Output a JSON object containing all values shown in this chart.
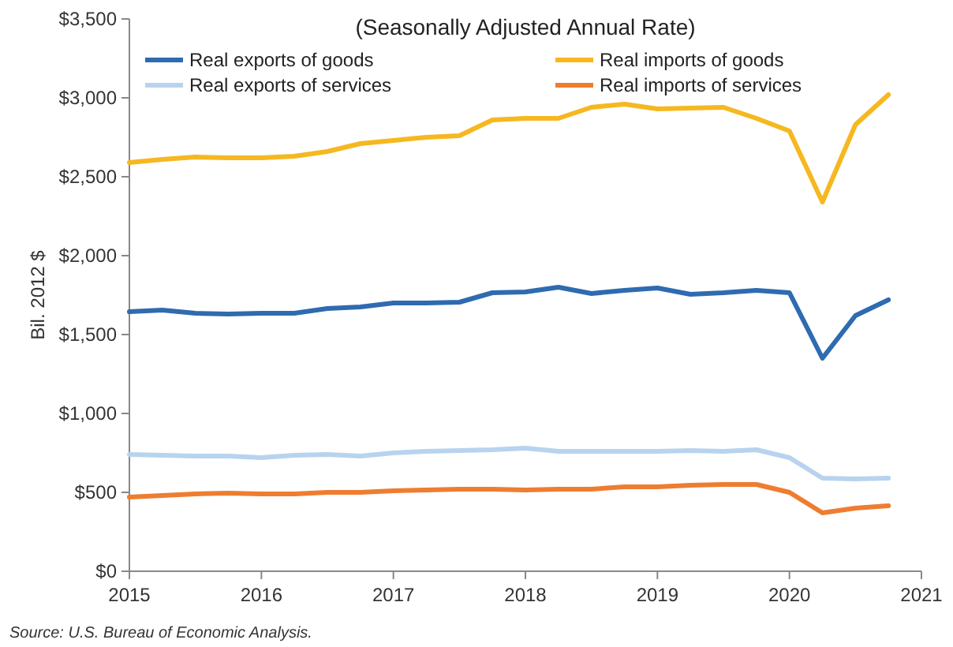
{
  "chart_data": {
    "type": "line",
    "title": "(Seasonally Adjusted Annual Rate)",
    "ylabel": "Bil. 2012 $",
    "annotations": [
      "Source: U.S. Bureau of Economic Analysis."
    ],
    "x": [
      2015,
      2015.25,
      2015.5,
      2015.75,
      2016,
      2016.25,
      2016.5,
      2016.75,
      2017,
      2017.25,
      2017.5,
      2017.75,
      2018,
      2018.25,
      2018.5,
      2018.75,
      2019,
      2019.25,
      2019.5,
      2019.75,
      2020,
      2020.25,
      2020.5,
      2020.75
    ],
    "series": [
      {
        "name": "Real exports of goods",
        "color": "#2e6bb0",
        "values": [
          1645,
          1655,
          1635,
          1630,
          1635,
          1635,
          1665,
          1675,
          1700,
          1700,
          1705,
          1765,
          1770,
          1800,
          1760,
          1780,
          1795,
          1755,
          1765,
          1780,
          1765,
          1350,
          1620,
          1720
        ]
      },
      {
        "name": "Real imports of goods",
        "color": "#f5b820",
        "values": [
          2590,
          2610,
          2625,
          2620,
          2620,
          2630,
          2660,
          2710,
          2730,
          2750,
          2760,
          2860,
          2870,
          2870,
          2940,
          2960,
          2930,
          2935,
          2940,
          2870,
          2790,
          2340,
          2830,
          3020
        ]
      },
      {
        "name": "Real exports of services",
        "color": "#b8d3ee",
        "values": [
          740,
          735,
          730,
          730,
          720,
          735,
          740,
          730,
          750,
          760,
          765,
          770,
          780,
          760,
          760,
          760,
          760,
          765,
          760,
          770,
          720,
          590,
          585,
          590
        ]
      },
      {
        "name": "Real imports of services",
        "color": "#ee7d31",
        "values": [
          470,
          480,
          490,
          495,
          490,
          490,
          500,
          500,
          510,
          515,
          520,
          520,
          515,
          520,
          520,
          535,
          535,
          545,
          550,
          550,
          500,
          370,
          400,
          415
        ]
      }
    ],
    "xlim": [
      2015,
      2021
    ],
    "xticks": [
      2015,
      2016,
      2017,
      2018,
      2019,
      2020,
      2021
    ],
    "ylim": [
      0,
      3500
    ],
    "yticks": [
      {
        "value": 0,
        "label": "$0"
      },
      {
        "value": 500,
        "label": "$500"
      },
      {
        "value": 1000,
        "label": "$1,000"
      },
      {
        "value": 1500,
        "label": "$1,500"
      },
      {
        "value": 2000,
        "label": "$2,000"
      },
      {
        "value": 2500,
        "label": "$2,500"
      },
      {
        "value": 3000,
        "label": "$3,000"
      },
      {
        "value": 3500,
        "label": "$3,500"
      }
    ],
    "grid": false,
    "legend": "top",
    "line_style": "solid",
    "marker": "none"
  }
}
